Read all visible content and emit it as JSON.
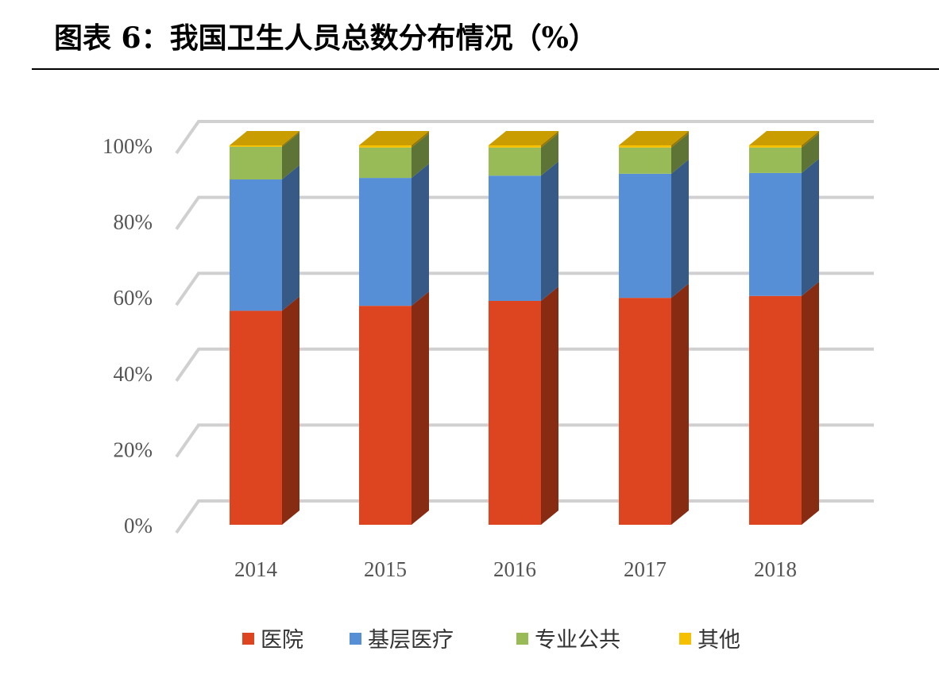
{
  "chart_data": {
    "type": "stacked_bar_3d",
    "title": "图表 6：我国卫生人员总数分布情况（%）",
    "categories": [
      "2014",
      "2015",
      "2016",
      "2017",
      "2018"
    ],
    "series": [
      {
        "name": "医院",
        "color": "#dc451f",
        "values": [
          56.4,
          57.7,
          59.0,
          59.8,
          60.3
        ]
      },
      {
        "name": "基层医疗",
        "color": "#578fd6",
        "values": [
          34.6,
          33.7,
          33.0,
          32.7,
          32.4
        ]
      },
      {
        "name": "专业公共",
        "color": "#98bb58",
        "values": [
          8.6,
          8.0,
          7.4,
          6.9,
          6.7
        ]
      },
      {
        "name": "其他",
        "color": "#f5c000",
        "values": [
          0.4,
          0.6,
          0.6,
          0.6,
          0.6
        ]
      }
    ],
    "ylim": [
      0,
      100
    ],
    "yticks": [
      {
        "value": 0,
        "label": "0%"
      },
      {
        "value": 20,
        "label": "20%"
      },
      {
        "value": 40,
        "label": "40%"
      },
      {
        "value": 60,
        "label": "60%"
      },
      {
        "value": 80,
        "label": "80%"
      },
      {
        "value": 100,
        "label": "100%"
      }
    ],
    "grid": true
  }
}
